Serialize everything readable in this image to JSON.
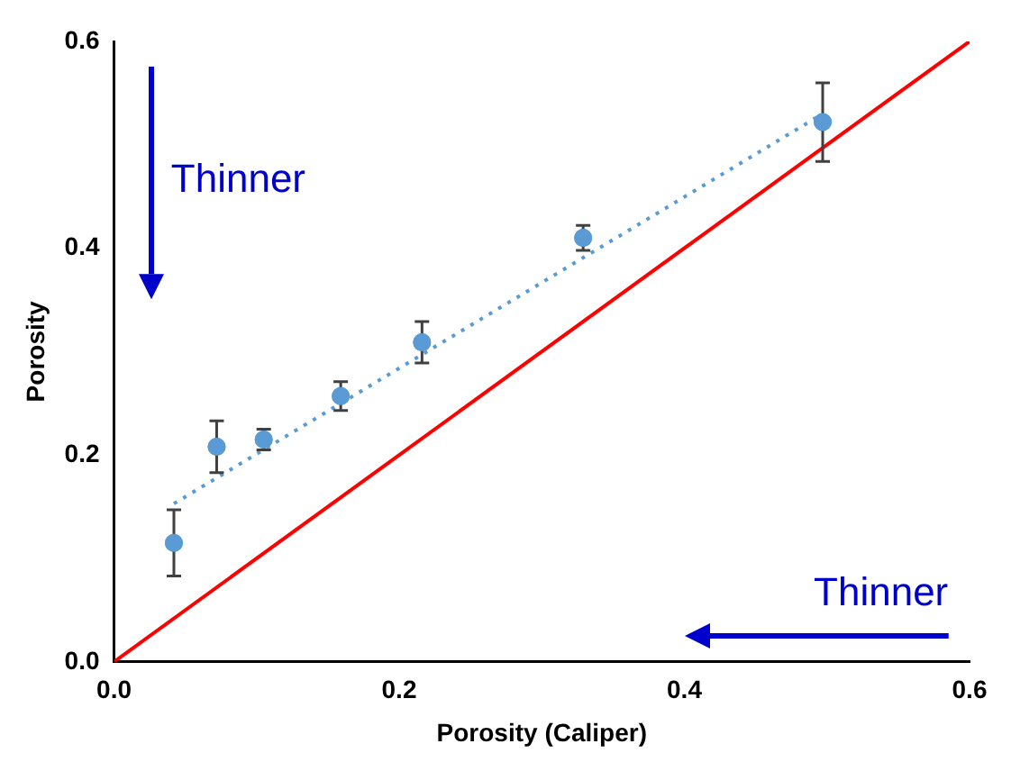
{
  "chart_data": {
    "type": "scatter",
    "xlabel": "Porosity (Caliper)",
    "ylabel": "Porosity",
    "xlim": [
      0,
      0.6
    ],
    "ylim": [
      0,
      0.6
    ],
    "xticks": [
      {
        "value": 0,
        "label": "0.0"
      },
      0.2,
      0.4,
      0.6
    ],
    "yticks": [
      {
        "value": 0,
        "label": "0.0"
      },
      0.2,
      0.4,
      0.6
    ],
    "grid": false,
    "legend": false,
    "marker": "circle",
    "series": [
      {
        "color": "#5b9bd5",
        "x": [
          0.042,
          0.072,
          0.105,
          0.159,
          0.216,
          0.329,
          0.497
        ],
        "values": [
          0.115,
          0.208,
          0.215,
          0.257,
          0.309,
          0.41,
          0.522
        ],
        "errors": [
          0.032,
          0.025,
          0.01,
          0.014,
          0.02,
          0.012,
          0.038
        ]
      },
      {
        "type": "line",
        "color": "#5b9bd5",
        "line_style": "dotted",
        "marker": "none",
        "x": [
          0.042,
          0.497
        ],
        "values": [
          0.153,
          0.53
        ]
      },
      {
        "type": "line",
        "color": "#ff0000",
        "line_style": "solid",
        "marker": "none",
        "x": [
          0,
          0.6
        ],
        "values": [
          0,
          0.6
        ]
      }
    ],
    "annotations": [
      "Thinner",
      "Thinner"
    ]
  }
}
